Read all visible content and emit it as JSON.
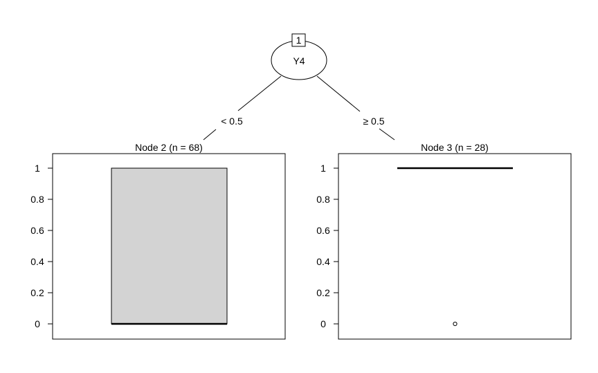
{
  "chart_data": {
    "type": "decision-tree-boxplot",
    "root": {
      "id": "1",
      "split_variable": "Y4",
      "branches": [
        {
          "label": "< 0.5"
        },
        {
          "label": "≥ 0.5"
        }
      ]
    },
    "leaves": [
      {
        "title": "Node 2 (n = 68)",
        "ylim": [
          0,
          1
        ],
        "y_ticks": [
          "0",
          "0.2",
          "0.4",
          "0.6",
          "0.8",
          "1"
        ],
        "box": {
          "min": 0,
          "q1": 0,
          "median": 0,
          "q3": 1,
          "max": 1
        },
        "outliers": []
      },
      {
        "title": "Node 3 (n = 28)",
        "ylim": [
          0,
          1
        ],
        "y_ticks": [
          "0",
          "0.2",
          "0.4",
          "0.6",
          "0.8",
          "1"
        ],
        "box": {
          "min": 1,
          "q1": 1,
          "median": 1,
          "q3": 1,
          "max": 1
        },
        "outliers": [
          0
        ]
      }
    ],
    "colors": {
      "box_fill": "#d3d3d3",
      "line": "#000000"
    }
  }
}
